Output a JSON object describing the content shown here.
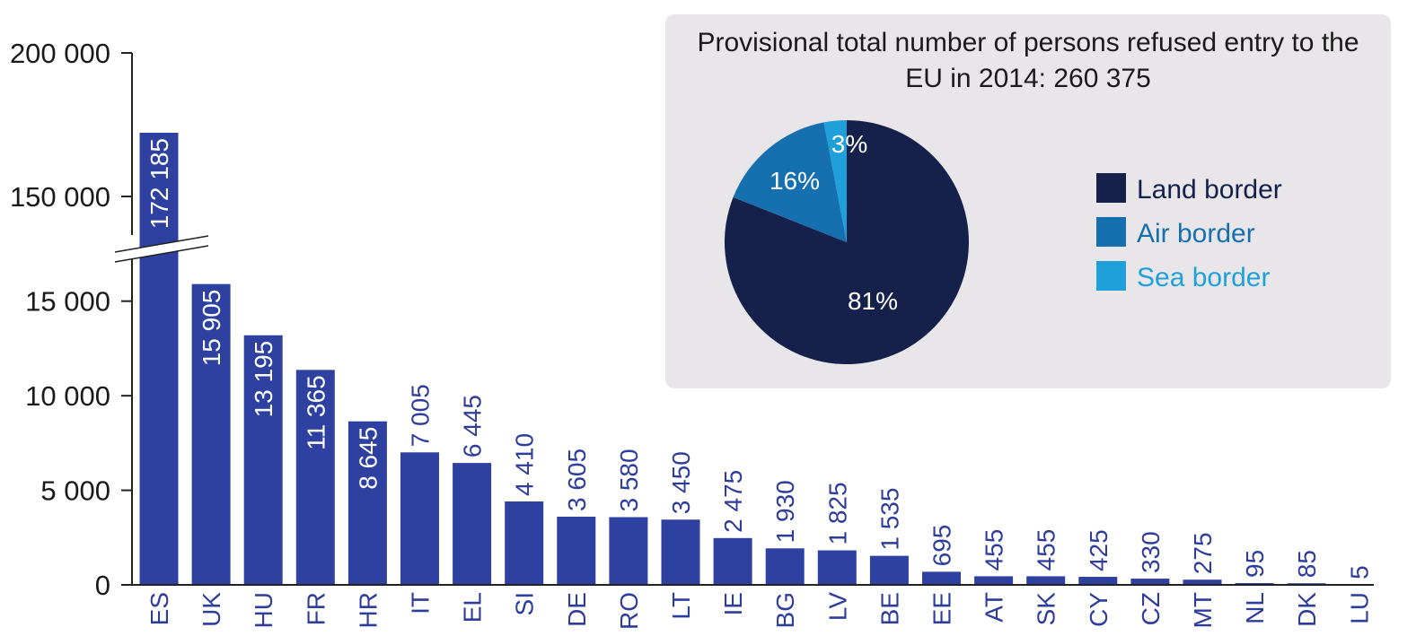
{
  "chart_data": [
    {
      "type": "bar",
      "categories": [
        "ES",
        "UK",
        "HU",
        "FR",
        "HR",
        "IT",
        "EL",
        "SI",
        "DE",
        "RO",
        "LT",
        "IE",
        "BG",
        "LV",
        "BE",
        "EE",
        "AT",
        "SK",
        "CY",
        "CZ",
        "MT",
        "NL",
        "DK",
        "LU"
      ],
      "values": [
        172185,
        15905,
        13195,
        11365,
        8645,
        7005,
        6445,
        4410,
        3605,
        3580,
        3450,
        2475,
        1930,
        1825,
        1535,
        695,
        455,
        455,
        425,
        330,
        275,
        95,
        85,
        5
      ],
      "value_labels": [
        "172 185",
        "15 905",
        "13 195",
        "11 365",
        "8 645",
        "7 005",
        "6 445",
        "4 410",
        "3 605",
        "3 580",
        "3 450",
        "2 475",
        "1 930",
        "1 825",
        "1 535",
        "695",
        "455",
        "455",
        "425",
        "330",
        "275",
        "95",
        "85",
        "5"
      ],
      "ylim": [
        0,
        200000
      ],
      "axis_break": [
        17500,
        145000
      ],
      "yticks": [
        0,
        5000,
        10000,
        15000,
        150000,
        200000
      ],
      "ytick_labels": [
        "0",
        "5 000",
        "10 000",
        "15 000",
        "150 000",
        "200 000"
      ],
      "grid": false,
      "color": "#2e41a0"
    },
    {
      "type": "pie",
      "title": "Provisional total number of persons refused entry to the EU in 2014: 260 375",
      "title_lines": [
        "Provisional total number of persons refused entry to the",
        "EU in 2014: 260 375"
      ],
      "slices": [
        {
          "label": "Land border",
          "value": 81,
          "pct_label": "81%",
          "color": "#15214a"
        },
        {
          "label": "Air border",
          "value": 16,
          "pct_label": "16%",
          "color": "#1670b0"
        },
        {
          "label": "Sea border",
          "value": 3,
          "pct_label": "3%",
          "color": "#1fa0da"
        }
      ],
      "legend_position": "right"
    }
  ]
}
